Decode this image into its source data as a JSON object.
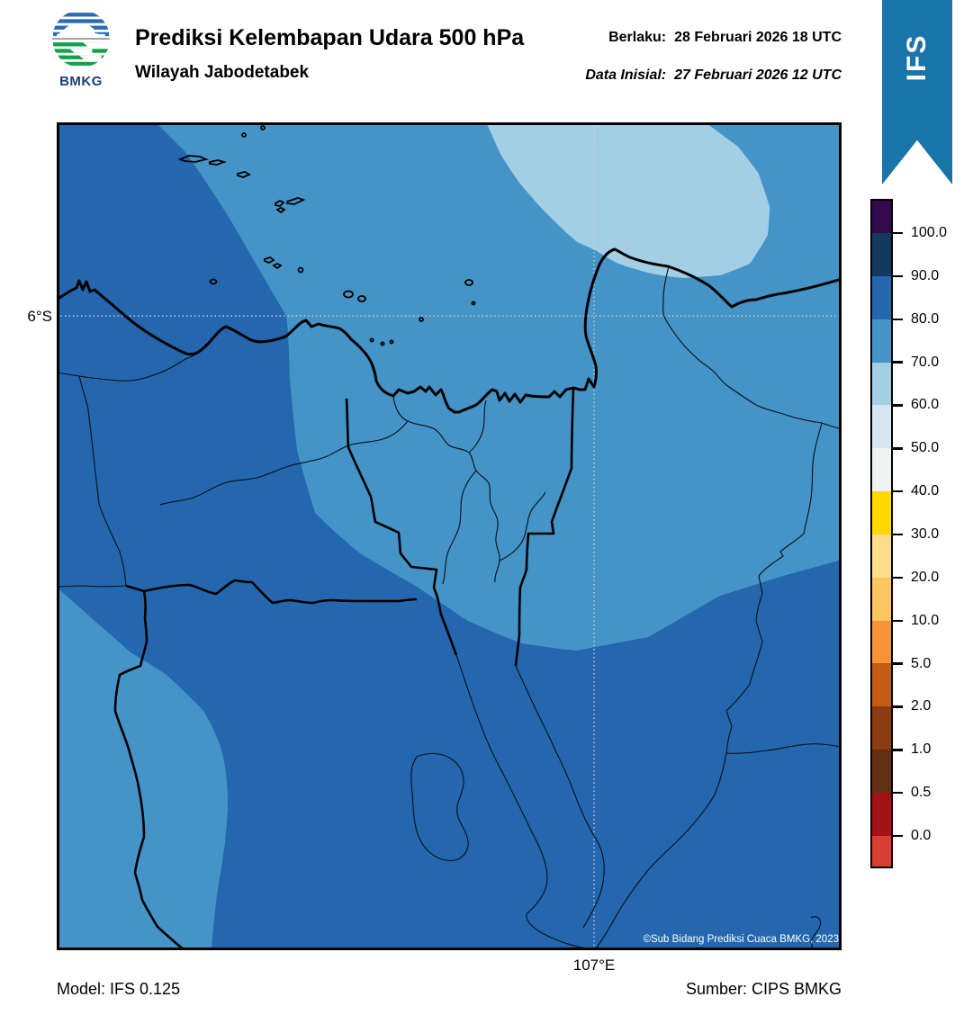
{
  "header": {
    "logo_text": "BMKG",
    "title": "Prediksi Kelembapan Udara 500 hPa",
    "subtitle": "Wilayah Jabodetabek",
    "valid_label": "Berlaku:",
    "valid_value": "28 Februari 2026 18 UTC",
    "init_label": "Data Inisial:",
    "init_value": "27 Februari 2026 12 UTC",
    "ribbon_text": "IFS"
  },
  "map": {
    "lat_label": "6°S",
    "lon_label": "107°E",
    "copyright": "©Sub Bidang Prediksi Cuaca BMKG, 2023"
  },
  "footer": {
    "model": "Model: IFS 0.125",
    "source": "Sumber: CIPS BMKG"
  },
  "colors": {
    "ribbon": "#1874a9",
    "dark": "#2467ae",
    "steel": "#4594c7",
    "light": "#a2cfe3",
    "grid": "#d8d8d8"
  },
  "colorbar": {
    "ticks": [
      "100.0",
      "90.0",
      "80.0",
      "70.0",
      "60.0",
      "50.0",
      "40.0",
      "30.0",
      "20.0",
      "10.0",
      "5.0",
      "2.0",
      "1.0",
      "0.5",
      "0.0"
    ],
    "segments": [
      "#330a4c",
      "#14395f",
      "#2467ae",
      "#4594c7",
      "#a2cfe3",
      "#d8e6f2",
      "#f1f2f2",
      "#ffd800",
      "#fcdd8a",
      "#fbc55f",
      "#f79438",
      "#c45c12",
      "#8c3c10",
      "#613010",
      "#a21217",
      "#d93e33"
    ]
  },
  "chart_data": {
    "type": "heatmap",
    "title": "Prediksi Kelembapan Udara 500 hPa",
    "region": "Wilayah Jabodetabek",
    "variable": "Relative humidity at 500 hPa (%)",
    "valid_time": "28 Februari 2026 18 UTC",
    "initial_time": "27 Februari 2026 12 UTC",
    "model": "IFS 0.125",
    "source": "CIPS BMKG",
    "scale_ticks": [
      100.0,
      90.0,
      80.0,
      70.0,
      60.0,
      50.0,
      40.0,
      30.0,
      20.0,
      10.0,
      5.0,
      2.0,
      1.0,
      0.5,
      0.0
    ],
    "gridlines": {
      "latitude": "6°S",
      "longitude": "107°E"
    },
    "filled_regions": [
      {
        "value_range": "80-90 %",
        "area": "western strip and entire southern half of domain"
      },
      {
        "value_range": "70-80 %",
        "area": "central and northeastern area incl. Jakarta, coastal sea, Bekasi-Karawang"
      },
      {
        "value_range": "60-70 %",
        "area": "elliptical patch over the sea at top center-right"
      },
      {
        "value_range": "70-80 %",
        "area": "small patch in the southwest corner"
      }
    ]
  }
}
